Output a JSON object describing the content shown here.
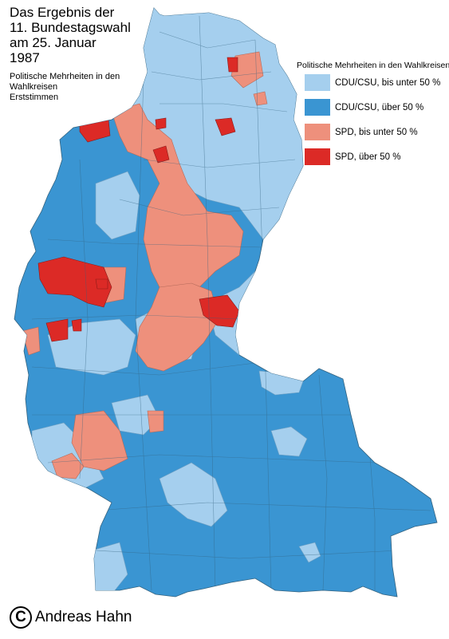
{
  "title_lines": [
    "Das Ergebnis der",
    "11. Bundestagswahl",
    "am 25. Januar",
    "1987"
  ],
  "subtitle_lines": [
    "Politische Mehrheiten in den",
    "Wahlkreisen",
    "Erststimmen"
  ],
  "legend": {
    "title": "Politische Mehrheiten in den Wahlkreisen",
    "items": [
      {
        "label": "CDU/CSU, bis unter 50 %",
        "color": "#a5cfee"
      },
      {
        "label": "CDU/CSU, über 50 %",
        "color": "#3a95d2"
      },
      {
        "label": "SPD, bis unter 50 %",
        "color": "#ee907c"
      },
      {
        "label": "SPD, über 50 %",
        "color": "#dc2a26"
      }
    ]
  },
  "copyright": {
    "symbol": "C",
    "author": "Andreas Hahn"
  }
}
